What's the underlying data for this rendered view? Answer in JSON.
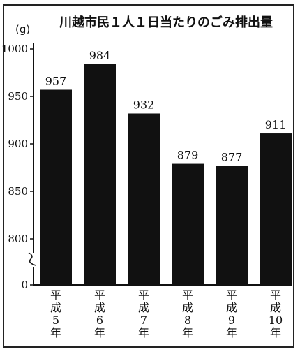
{
  "chart_data": {
    "type": "bar",
    "title": "川越市民１人１日当たりのごみ排出量",
    "ylabel": "(g)",
    "xlabel": "",
    "categories": [
      "平成5年",
      "平成6年",
      "平成7年",
      "平成8年",
      "平成9年",
      "平成10年"
    ],
    "category_lines": [
      [
        "平",
        "成",
        "5",
        "年"
      ],
      [
        "平",
        "成",
        "6",
        "年"
      ],
      [
        "平",
        "成",
        "7",
        "年"
      ],
      [
        "平",
        "成",
        "8",
        "年"
      ],
      [
        "平",
        "成",
        "9",
        "年"
      ],
      [
        "平",
        "成",
        "10",
        "年"
      ]
    ],
    "values": [
      957,
      984,
      932,
      879,
      877,
      911
    ],
    "yticks": [
      "0",
      "800",
      "850",
      "900",
      "950",
      "1000"
    ],
    "ylim": [
      0,
      1000
    ],
    "axis_break": {
      "from": 0,
      "to": 800
    },
    "grid": false,
    "legend": "none",
    "bar_color": "#111111"
  }
}
